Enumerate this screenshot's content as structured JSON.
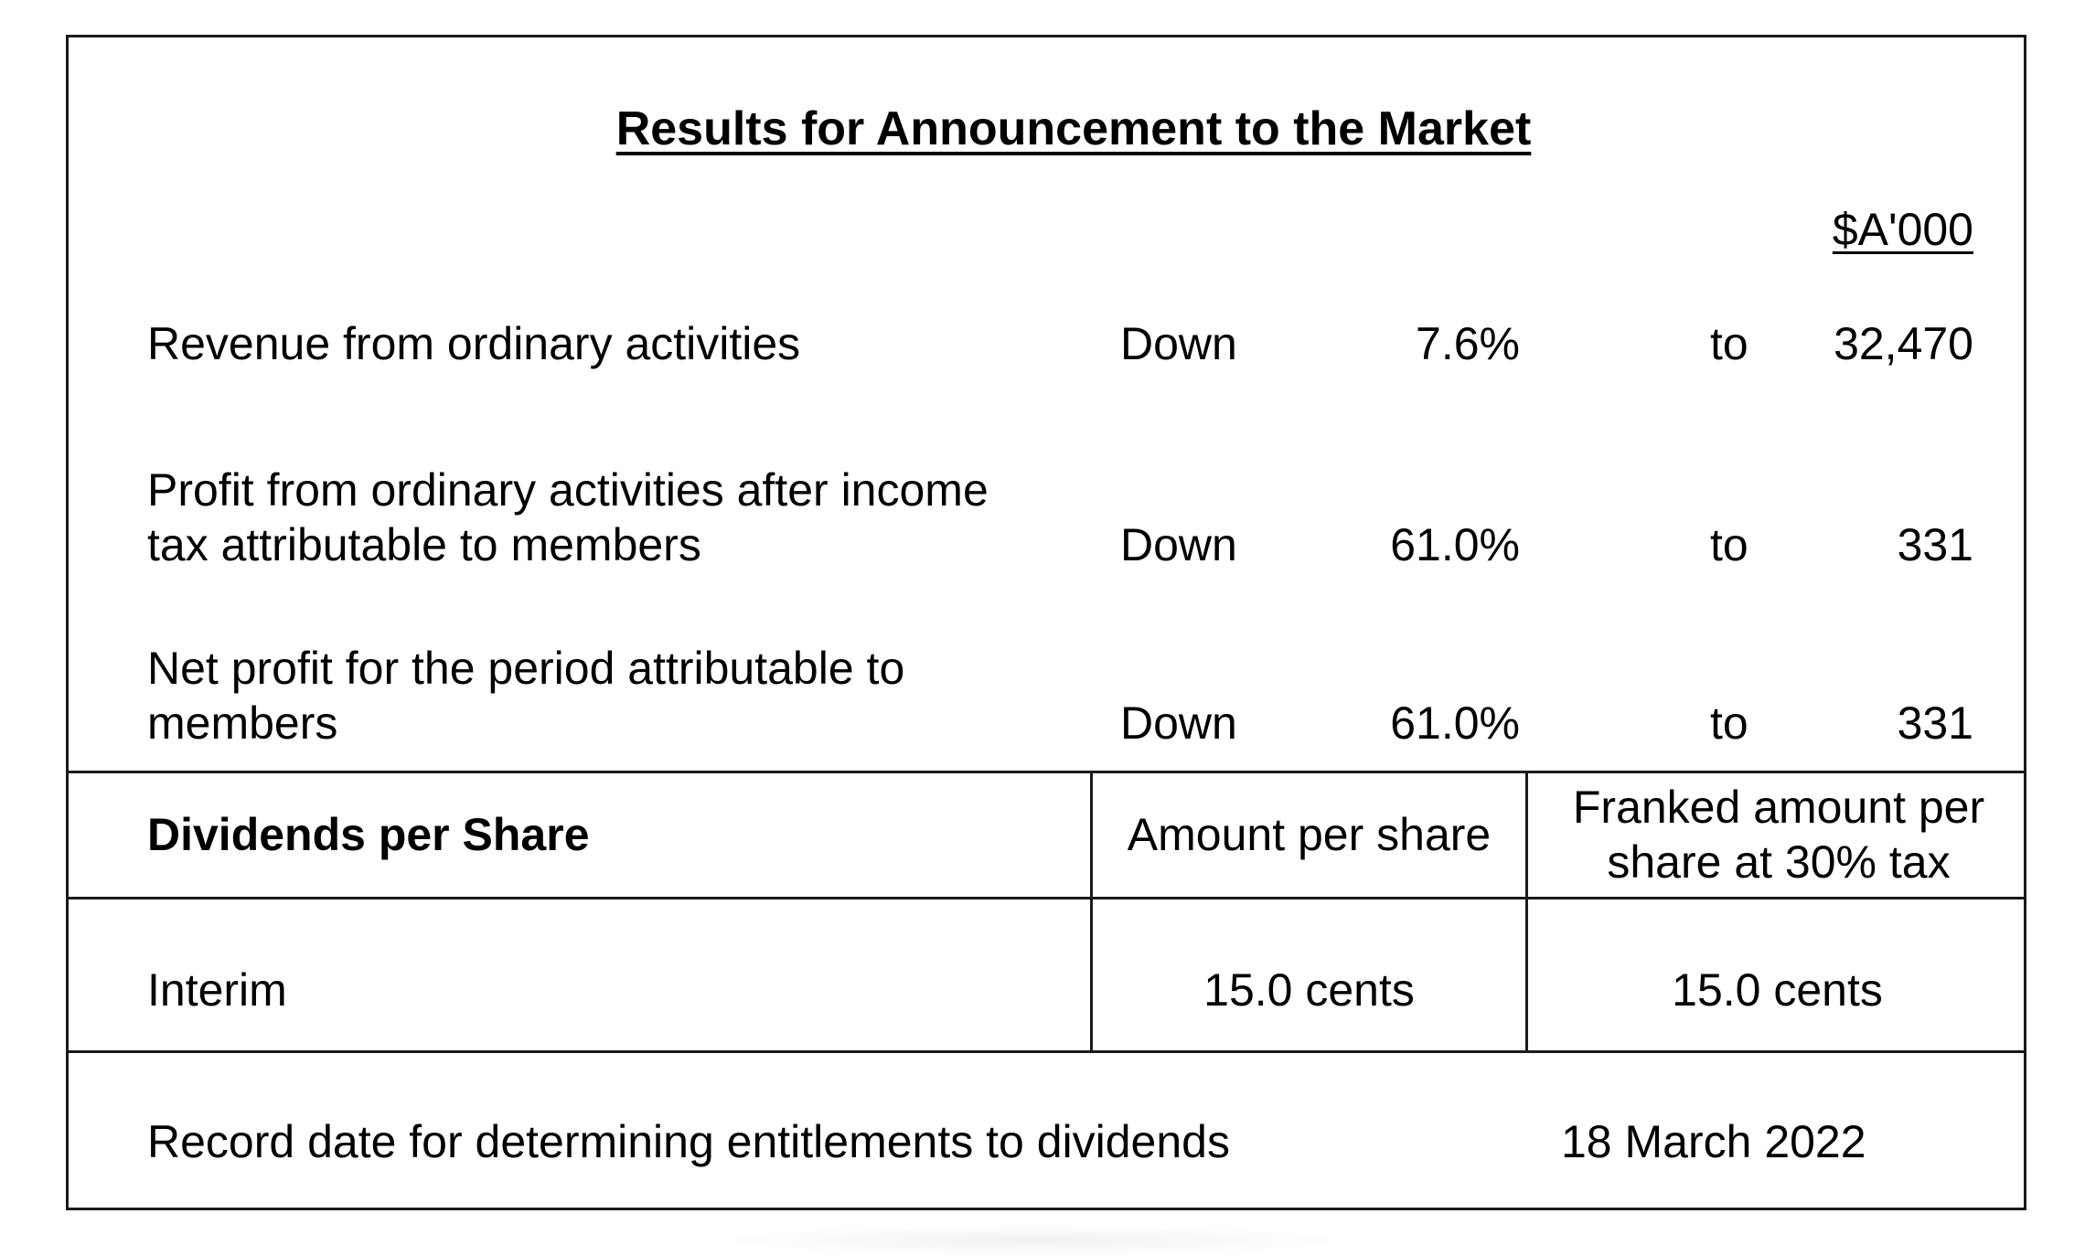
{
  "title": "Results for Announcement to the Market",
  "unit_header": "$A'000",
  "results": [
    {
      "label": "Revenue from ordinary activities",
      "direction": "Down",
      "percent": "7.6%",
      "to": "to",
      "value": "32,470"
    },
    {
      "label": "Profit from ordinary activities after income tax attributable to members",
      "direction": "Down",
      "percent": "61.0%",
      "to": "to",
      "value": "331"
    },
    {
      "label": "Net profit for the period attributable to members",
      "direction": "Down",
      "percent": "61.0%",
      "to": "to",
      "value": "331"
    }
  ],
  "dividends": {
    "heading": "Dividends per Share",
    "amount_header": "Amount per share",
    "franked_header": "Franked amount per share at 30% tax",
    "rows": [
      {
        "label": "Interim",
        "amount": "15.0 cents",
        "franked": "15.0 cents"
      }
    ]
  },
  "record_date": {
    "label": "Record date for determining entitlements to dividends",
    "value": "18 March 2022"
  }
}
